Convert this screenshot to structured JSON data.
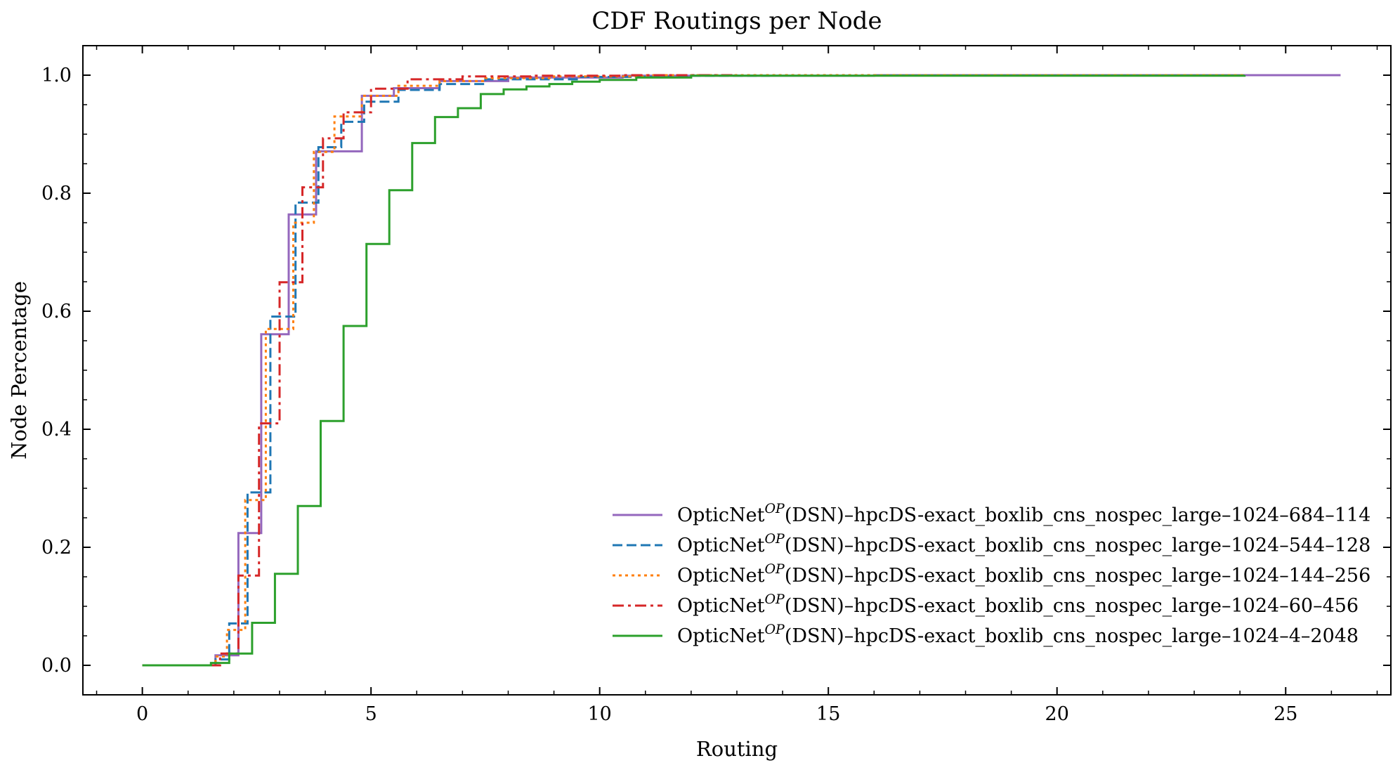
{
  "chart_data": {
    "type": "line",
    "step": "post",
    "title": "CDF Routings per Node",
    "xlabel": "Routing",
    "ylabel": "Node Percentage",
    "xlim": [
      -1.3,
      27.3
    ],
    "ylim": [
      -0.05,
      1.05
    ],
    "xticks": [
      0,
      5,
      10,
      15,
      20,
      25
    ],
    "xtick_labels": [
      "0",
      "5",
      "10",
      "15",
      "20",
      "25"
    ],
    "yticks": [
      0.0,
      0.2,
      0.4,
      0.6,
      0.8,
      1.0
    ],
    "ytick_labels": [
      "0.0",
      "0.2",
      "0.4",
      "0.6",
      "0.8",
      "1.0"
    ],
    "grid": false,
    "legend_position": "lower-right",
    "legend_prefix": "OpticNet",
    "legend_superscript": "OP",
    "series": [
      {
        "name_suffix": "(DSN)–hpcDS-exact_boxlib_cns_nospec_large–1024–684–114",
        "color": "#9467bd",
        "dash": "solid",
        "x": [
          0,
          1.6,
          2.1,
          2.6,
          3.2,
          3.8,
          4.8,
          5.5,
          6.5,
          8.0,
          10.5,
          16.0,
          26.2
        ],
        "y": [
          0.0,
          0.017,
          0.224,
          0.561,
          0.764,
          0.871,
          0.965,
          0.978,
          0.99,
          0.996,
          0.999,
          1.0,
          1.0
        ]
      },
      {
        "name_suffix": "(DSN)–hpcDS-exact_boxlib_cns_nospec_large–1024–544–128",
        "color": "#1f77b4",
        "dash": "dashed",
        "x": [
          0,
          1.6,
          1.9,
          2.3,
          2.8,
          3.35,
          3.85,
          4.35,
          4.85,
          5.6,
          6.5,
          7.5,
          9.5,
          12.0,
          13.7
        ],
        "y": [
          0.0,
          0.01,
          0.071,
          0.293,
          0.591,
          0.784,
          0.878,
          0.921,
          0.955,
          0.975,
          0.985,
          0.993,
          0.997,
          0.999,
          1.0
        ]
      },
      {
        "name_suffix": "(DSN)–hpcDS-exact_boxlib_cns_nospec_large–1024–144–256",
        "color": "#ff7f0e",
        "dash": "dotted",
        "x": [
          0,
          1.6,
          1.85,
          2.25,
          2.7,
          3.3,
          3.75,
          4.2,
          4.8,
          5.6,
          6.5,
          7.5,
          9.0,
          11.0,
          24.1
        ],
        "y": [
          0.0,
          0.015,
          0.06,
          0.28,
          0.57,
          0.75,
          0.87,
          0.93,
          0.965,
          0.982,
          0.99,
          0.995,
          0.998,
          1.0,
          1.0
        ]
      },
      {
        "name_suffix": "(DSN)–hpcDS-exact_boxlib_cns_nospec_large–1024–60–456",
        "color": "#d62728",
        "dash": "dashdot",
        "x": [
          0,
          1.7,
          2.1,
          2.55,
          3.0,
          3.5,
          3.95,
          4.4,
          5.0,
          5.8,
          7.0,
          8.5,
          10.5,
          12.5,
          13.0
        ],
        "y": [
          0.0,
          0.02,
          0.152,
          0.41,
          0.649,
          0.81,
          0.893,
          0.937,
          0.977,
          0.993,
          0.998,
          0.999,
          1.0,
          1.0,
          1.0
        ]
      },
      {
        "name_suffix": "(DSN)–hpcDS-exact_boxlib_cns_nospec_large–1024–4–2048",
        "color": "#2ca02c",
        "dash": "solid",
        "x": [
          0,
          1.5,
          1.9,
          2.4,
          2.9,
          3.4,
          3.9,
          4.4,
          4.9,
          5.4,
          5.9,
          6.4,
          6.9,
          7.4,
          7.9,
          8.4,
          8.9,
          9.4,
          10.0,
          10.8,
          12.0,
          24.1
        ],
        "y": [
          0.0,
          0.004,
          0.02,
          0.072,
          0.155,
          0.27,
          0.414,
          0.575,
          0.714,
          0.805,
          0.885,
          0.929,
          0.944,
          0.968,
          0.976,
          0.981,
          0.985,
          0.989,
          0.992,
          0.996,
          0.999,
          1.0
        ]
      }
    ]
  }
}
